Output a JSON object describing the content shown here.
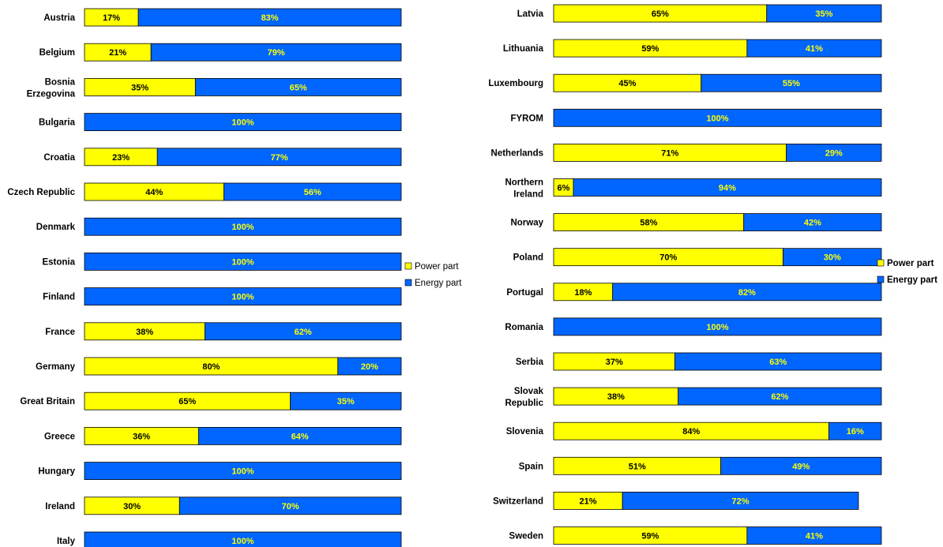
{
  "colors": {
    "power": "#FFFF00",
    "energy": "#0066FF",
    "power_text": "#000000",
    "energy_text": "#FFFF00",
    "outline": "#000000"
  },
  "chart_data": [
    {
      "type": "bar",
      "orientation": "horizontal",
      "stacked": true,
      "xlim": [
        0,
        100
      ],
      "legend_placement": "right",
      "legend": [
        "Power part",
        "Energy part"
      ],
      "categories": [
        "Austria",
        "Belgium",
        "Bosnia Erzegovina",
        "Bulgaria",
        "Croatia",
        "Czech Republic",
        "Denmark",
        "Estonia",
        "Finland",
        "France",
        "Germany",
        "Great Britain",
        "Greece",
        "Hungary",
        "Ireland",
        "Italy"
      ],
      "category_lines": [
        [
          "Austria"
        ],
        [
          "Belgium"
        ],
        [
          "Bosnia",
          "Erzegovina"
        ],
        [
          "Bulgaria"
        ],
        [
          "Croatia"
        ],
        [
          "Czech Republic"
        ],
        [
          "Denmark"
        ],
        [
          "Estonia"
        ],
        [
          "Finland"
        ],
        [
          "France"
        ],
        [
          "Germany"
        ],
        [
          "Great Britain"
        ],
        [
          "Greece"
        ],
        [
          "Hungary"
        ],
        [
          "Ireland"
        ],
        [
          "Italy"
        ]
      ],
      "series": [
        {
          "name": "Power part",
          "values": [
            17,
            21,
            35,
            0,
            23,
            44,
            0,
            0,
            0,
            38,
            80,
            65,
            36,
            0,
            30,
            0
          ],
          "labels": [
            "17%",
            "21%",
            "35%",
            "",
            "23%",
            "44%",
            "",
            "",
            "",
            "38%",
            "80%",
            "65%",
            "36%",
            "",
            "30%",
            ""
          ]
        },
        {
          "name": "Energy part",
          "values": [
            83,
            79,
            65,
            100,
            77,
            56,
            100,
            100,
            100,
            62,
            20,
            35,
            64,
            100,
            70,
            100
          ],
          "labels": [
            "83%",
            "79%",
            "65%",
            "100%",
            "77%",
            "56%",
            "100%",
            "100%",
            "100%",
            "62%",
            "20%",
            "35%",
            "64%",
            "100%",
            "70%",
            "100%"
          ]
        }
      ]
    },
    {
      "type": "bar",
      "orientation": "horizontal",
      "stacked": true,
      "xlim": [
        0,
        100
      ],
      "legend_placement": "right",
      "legend": [
        "Power part",
        "Energy part"
      ],
      "categories": [
        "Latvia",
        "Lithuania",
        "Luxembourg",
        "FYROM",
        "Netherlands",
        "Northern Ireland",
        "Norway",
        "Poland",
        "Portugal",
        "Romania",
        "Serbia",
        "Slovak Republic",
        "Slovenia",
        "Spain",
        "Switzerland",
        "Sweden"
      ],
      "category_lines": [
        [
          "Latvia"
        ],
        [
          "Lithuania"
        ],
        [
          "Luxembourg"
        ],
        [
          "FYROM"
        ],
        [
          "Netherlands"
        ],
        [
          "Northern",
          "Ireland"
        ],
        [
          "Norway"
        ],
        [
          "Poland"
        ],
        [
          "Portugal"
        ],
        [
          "Romania"
        ],
        [
          "Serbia"
        ],
        [
          "Slovak",
          "Republic"
        ],
        [
          "Slovenia"
        ],
        [
          "Spain"
        ],
        [
          "Switzerland"
        ],
        [
          "Sweden"
        ]
      ],
      "series": [
        {
          "name": "Power part",
          "values": [
            65,
            59,
            45,
            0,
            71,
            6,
            58,
            70,
            18,
            0,
            37,
            38,
            84,
            51,
            21,
            59
          ],
          "labels": [
            "65%",
            "59%",
            "45%",
            "",
            "71%",
            "6%",
            "58%",
            "70%",
            "18%",
            "",
            "37%",
            "38%",
            "84%",
            "51%",
            "21%",
            "59%"
          ]
        },
        {
          "name": "Energy part",
          "values": [
            35,
            41,
            55,
            100,
            29,
            94,
            42,
            30,
            82,
            100,
            63,
            62,
            16,
            49,
            72,
            41
          ],
          "labels": [
            "35%",
            "41%",
            "55%",
            "100%",
            "29%",
            "94%",
            "42%",
            "30%",
            "82%",
            "100%",
            "63%",
            "62%",
            "16%",
            "49%",
            "72%",
            "41%"
          ]
        }
      ]
    }
  ]
}
